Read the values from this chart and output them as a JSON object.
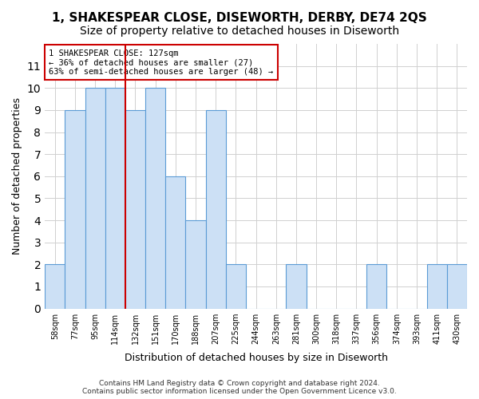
{
  "title": "1, SHAKESPEAR CLOSE, DISEWORTH, DERBY, DE74 2QS",
  "subtitle": "Size of property relative to detached houses in Diseworth",
  "xlabel": "Distribution of detached houses by size in Diseworth",
  "ylabel": "Number of detached properties",
  "bin_labels": [
    "58sqm",
    "77sqm",
    "95sqm",
    "114sqm",
    "132sqm",
    "151sqm",
    "170sqm",
    "188sqm",
    "207sqm",
    "225sqm",
    "244sqm",
    "263sqm",
    "281sqm",
    "300sqm",
    "318sqm",
    "337sqm",
    "356sqm",
    "374sqm",
    "393sqm",
    "411sqm",
    "430sqm"
  ],
  "bar_heights": [
    2,
    9,
    10,
    10,
    9,
    10,
    6,
    4,
    9,
    2,
    0,
    0,
    2,
    0,
    0,
    0,
    2,
    0,
    0,
    2,
    2
  ],
  "bar_color": "#cce0f5",
  "bar_edge_color": "#5b9bd5",
  "red_line_x": 3.5,
  "annotation_text": "1 SHAKESPEAR CLOSE: 127sqm\n← 36% of detached houses are smaller (27)\n63% of semi-detached houses are larger (48) →",
  "annotation_box_color": "#ffffff",
  "annotation_box_edge": "#cc0000",
  "ylim": [
    0,
    12
  ],
  "yticks": [
    0,
    1,
    2,
    3,
    4,
    5,
    6,
    7,
    8,
    9,
    10,
    11
  ],
  "footer": "Contains HM Land Registry data © Crown copyright and database right 2024.\nContains public sector information licensed under the Open Government Licence v3.0.",
  "title_fontsize": 11,
  "subtitle_fontsize": 10,
  "background_color": "#ffffff",
  "grid_color": "#d0d0d0"
}
